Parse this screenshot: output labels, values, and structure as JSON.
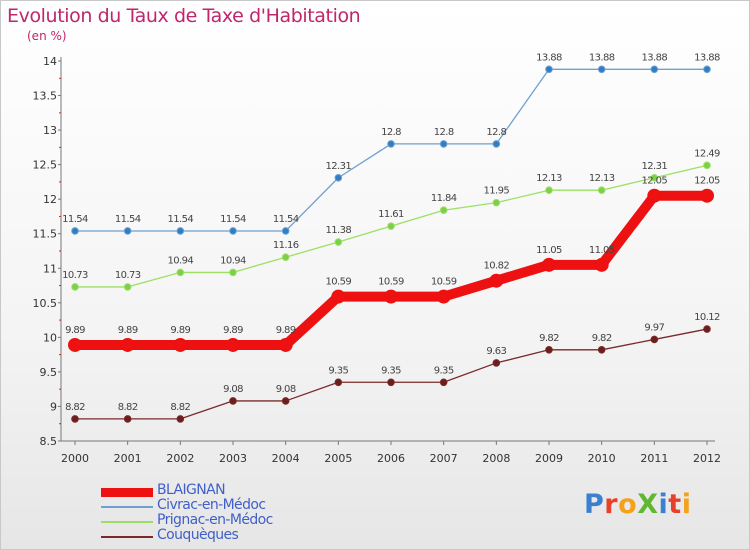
{
  "header": {
    "title": "Evolution du Taux de Taxe d'Habitation",
    "subtitle": "(en %)"
  },
  "brand": {
    "text": "ProXiti",
    "colors": [
      "#3a7fd0",
      "#e8402a",
      "#f3a21b",
      "#60b832",
      "#3a7fd0",
      "#e8402a",
      "#f3a21b"
    ]
  },
  "chart_data": {
    "type": "line",
    "title": "Evolution du Taux de Taxe d'Habitation",
    "subtitle": "(en %)",
    "xlabel": "",
    "ylabel": "",
    "x": [
      "2000",
      "2001",
      "2002",
      "2003",
      "2004",
      "2005",
      "2006",
      "2007",
      "2008",
      "2009",
      "2010",
      "2011",
      "2012"
    ],
    "ylim": [
      8.5,
      14
    ],
    "yticks": [
      8.5,
      9,
      9.5,
      10,
      10.5,
      11,
      11.5,
      12,
      12.5,
      13,
      13.5,
      14
    ],
    "ytick_labels": [
      "8.5",
      "9",
      "9.5",
      "10",
      "10.5",
      "11",
      "11.5",
      "12",
      "12.5",
      "13",
      "13.5",
      "14"
    ],
    "grid": false,
    "legend": "bottom-left",
    "series": [
      {
        "name": "BLAIGNAN",
        "color": "#ee1111",
        "values": [
          9.89,
          9.89,
          9.89,
          9.89,
          9.89,
          10.59,
          10.59,
          10.59,
          10.82,
          11.05,
          11.05,
          12.05,
          12.05
        ],
        "labels": [
          "9.89",
          "9.89",
          "9.89",
          "9.89",
          "9.89",
          "10.59",
          "10.59",
          "10.59",
          "10.82",
          "11.05",
          "11.05",
          "12.05",
          "12.05"
        ]
      },
      {
        "name": "Civrac-en-Médoc",
        "color": "#6fa0d0",
        "values": [
          11.54,
          11.54,
          11.54,
          11.54,
          11.54,
          12.31,
          12.8,
          12.8,
          12.8,
          13.88,
          13.88,
          13.88,
          13.88
        ],
        "labels": [
          "11.54",
          "11.54",
          "11.54",
          "11.54",
          "11.54",
          "12.31",
          "12.8",
          "12.8",
          "12.8",
          "13.88",
          "13.88",
          "13.88",
          "13.88"
        ]
      },
      {
        "name": "Prignac-en-Médoc",
        "color": "#9be064",
        "values": [
          10.73,
          10.73,
          10.94,
          10.94,
          11.16,
          11.38,
          11.61,
          11.84,
          11.95,
          12.13,
          12.13,
          12.31,
          12.49
        ],
        "labels": [
          "10.73",
          "10.73",
          "10.94",
          "10.94",
          "11.16",
          "11.38",
          "11.61",
          "11.84",
          "11.95",
          "12.13",
          "12.13",
          "12.31",
          "12.49"
        ]
      },
      {
        "name": "Couquèques",
        "color": "#7a2a2a",
        "values": [
          8.82,
          8.82,
          8.82,
          9.08,
          9.08,
          9.35,
          9.35,
          9.35,
          9.63,
          9.82,
          9.82,
          9.97,
          10.12
        ],
        "labels": [
          "8.82",
          "8.82",
          "8.82",
          "9.08",
          "9.08",
          "9.35",
          "9.35",
          "9.35",
          "9.63",
          "9.82",
          "9.82",
          "9.97",
          "10.12"
        ]
      }
    ]
  }
}
